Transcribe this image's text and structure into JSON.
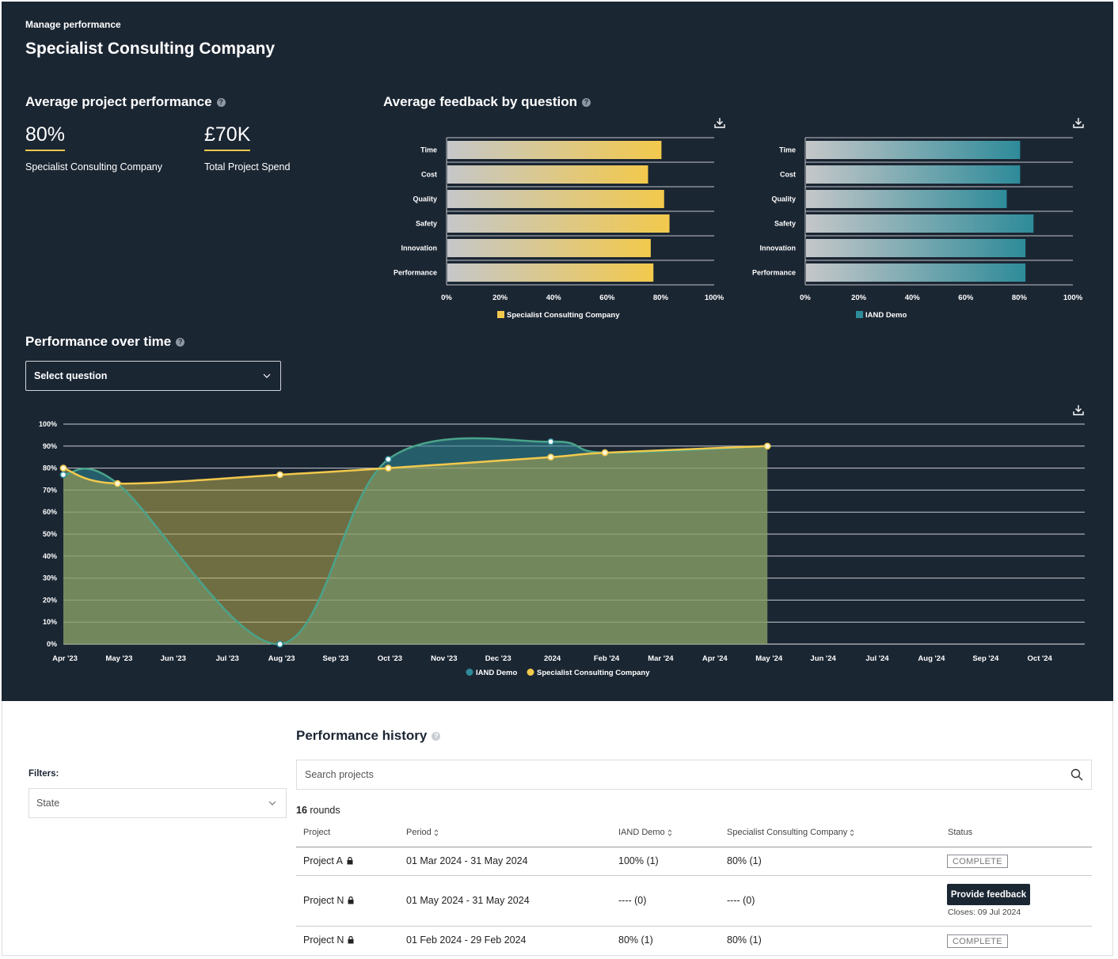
{
  "header": {
    "breadcrumb": "Manage performance",
    "company": "Specialist Consulting Company"
  },
  "avg_performance": {
    "title": "Average project performance",
    "kpis": [
      {
        "value": "80%",
        "label": "Specialist Consulting Company"
      },
      {
        "value": "£70K",
        "label": "Total Project Spend"
      }
    ]
  },
  "avg_feedback": {
    "title": "Average feedback by question"
  },
  "perf_over_time": {
    "title": "Performance over time",
    "select_placeholder": "Select question"
  },
  "colors": {
    "background": "#1b2633",
    "company_series": "#f2c94c",
    "iand_series": "#2e8b99",
    "button_dark": "#1b2633"
  },
  "icons": [
    "help-icon",
    "download-icon",
    "chevron-down-icon",
    "search-icon",
    "lock-icon",
    "sort-icon"
  ],
  "chart_data": [
    {
      "type": "bar",
      "orientation": "horizontal",
      "categories": [
        "Time",
        "Cost",
        "Quality",
        "Safety",
        "Innovation",
        "Performance"
      ],
      "series": [
        {
          "name": "Specialist Consulting Company",
          "values": [
            80,
            75,
            81,
            83,
            76,
            77
          ]
        }
      ],
      "xlim": [
        0,
        100
      ],
      "x_ticks": [
        "0%",
        "20%",
        "40%",
        "60%",
        "80%",
        "100%"
      ],
      "legend": "bottom",
      "color": "#f2c94c"
    },
    {
      "type": "bar",
      "orientation": "horizontal",
      "categories": [
        "Time",
        "Cost",
        "Quality",
        "Safety",
        "Innovation",
        "Performance"
      ],
      "series": [
        {
          "name": "IAND Demo",
          "values": [
            80,
            80,
            75,
            85,
            82,
            82
          ]
        }
      ],
      "xlim": [
        0,
        100
      ],
      "x_ticks": [
        "0%",
        "20%",
        "40%",
        "60%",
        "80%",
        "100%"
      ],
      "legend": "bottom",
      "color": "#2e8b99"
    },
    {
      "type": "area",
      "x": [
        "Apr '23",
        "May '23",
        "Jun '23",
        "Jul '23",
        "Aug '23",
        "Sep '23",
        "Oct '23",
        "Nov '23",
        "Dec '23",
        "2024",
        "Feb '24",
        "Mar '24",
        "Apr '24",
        "May '24",
        "Jun '24",
        "Jul '24",
        "Aug '24",
        "Sep '24",
        "Oct '24"
      ],
      "ylim": [
        0,
        100
      ],
      "y_ticks": [
        "0%",
        "10%",
        "20%",
        "30%",
        "40%",
        "50%",
        "60%",
        "70%",
        "80%",
        "90%",
        "100%"
      ],
      "series": [
        {
          "name": "IAND Demo",
          "points": [
            [
              0,
              77
            ],
            [
              1,
              73
            ],
            [
              4,
              0
            ],
            [
              6,
              84
            ],
            [
              9,
              92
            ],
            [
              10,
              87
            ],
            [
              13,
              90
            ]
          ]
        },
        {
          "name": "Specialist Consulting Company",
          "points": [
            [
              0,
              80
            ],
            [
              1,
              73
            ],
            [
              4,
              77
            ],
            [
              6,
              80
            ],
            [
              9,
              85
            ],
            [
              10,
              87
            ],
            [
              13,
              90
            ]
          ]
        }
      ],
      "legend": "bottom",
      "grid": true
    }
  ],
  "history": {
    "filters_label": "Filters:",
    "state_placeholder": "State",
    "title": "Performance history",
    "search_placeholder": "Search projects",
    "rounds_count": "16",
    "rounds_label": "rounds",
    "columns": [
      "Project",
      "Period",
      "IAND Demo",
      "Specialist Consulting Company",
      "Status"
    ],
    "rows": [
      {
        "project": "Project A",
        "period": "01 Mar 2024 - 31 May 2024",
        "iand": "100% (1)",
        "company": "80% (1)",
        "status": "COMPLETE"
      },
      {
        "project": "Project N",
        "period": "01 May 2024 - 31 May 2024",
        "iand": "---- (0)",
        "company": "---- (0)",
        "action": "Provide feedback",
        "closes": "Closes: 09 Jul 2024"
      },
      {
        "project": "Project N",
        "period": "01 Feb 2024 - 29 Feb 2024",
        "iand": "80% (1)",
        "company": "80% (1)",
        "status": "COMPLETE"
      }
    ]
  }
}
